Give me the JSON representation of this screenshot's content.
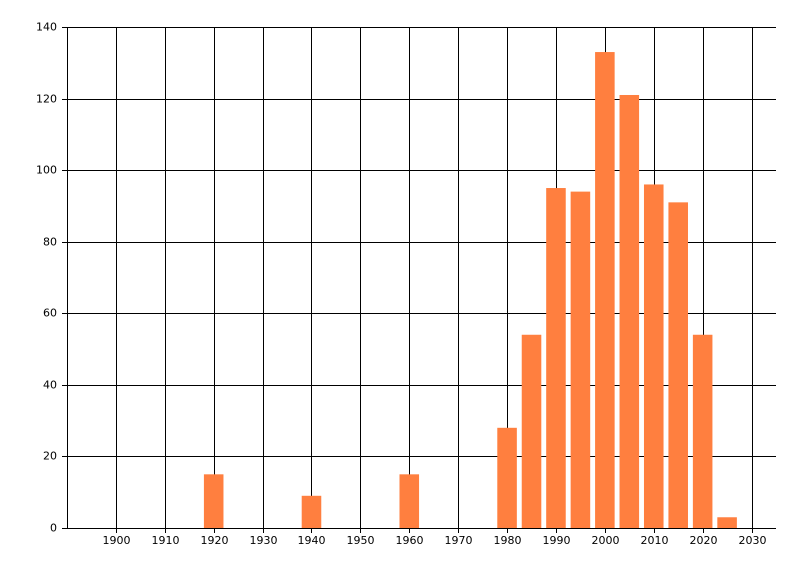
{
  "chart_data": {
    "type": "bar",
    "x": [
      1920,
      1940,
      1960,
      1980,
      1985,
      1990,
      1995,
      2000,
      2005,
      2010,
      2015,
      2020,
      2025
    ],
    "values": [
      15,
      9,
      15,
      28,
      54,
      95,
      94,
      133,
      121,
      96,
      91,
      54,
      3
    ],
    "color": "#ff7f3f",
    "xlim": [
      1890,
      2035
    ],
    "xticks": [
      1900,
      1910,
      1920,
      1930,
      1940,
      1950,
      1960,
      1970,
      1980,
      1990,
      2000,
      2010,
      2020,
      2030
    ],
    "ylim": [
      0,
      140
    ],
    "yticks": [
      0,
      20,
      40,
      60,
      80,
      100,
      120,
      140
    ],
    "grid": true
  }
}
